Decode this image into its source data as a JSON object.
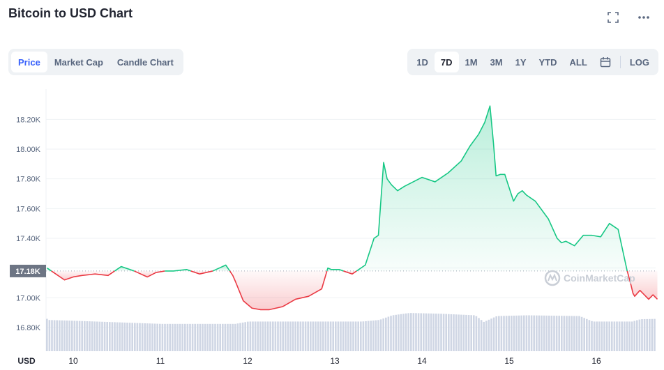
{
  "header": {
    "title": "Bitcoin to USD Chart"
  },
  "icons": {
    "fullscreen": "fullscreen-icon",
    "more": "more-icon",
    "calendar": "calendar-icon",
    "watermark": "coinmarketcap-logo-icon"
  },
  "tabs": [
    {
      "label": "Price",
      "active": true
    },
    {
      "label": "Market Cap",
      "active": false
    },
    {
      "label": "Candle Chart",
      "active": false
    }
  ],
  "ranges": [
    {
      "label": "1D",
      "active": false
    },
    {
      "label": "7D",
      "active": true
    },
    {
      "label": "1M",
      "active": false
    },
    {
      "label": "3M",
      "active": false
    },
    {
      "label": "1Y",
      "active": false
    },
    {
      "label": "YTD",
      "active": false
    },
    {
      "label": "ALL",
      "active": false
    }
  ],
  "log_label": "LOG",
  "watermark": "CoinMarketCap",
  "colors": {
    "up": "#16c784",
    "down": "#ea3943",
    "volume": "#cfd6e4",
    "current_label_bg": "#6d7584",
    "grid": "#eff2f5"
  },
  "chart_data": {
    "type": "area",
    "title": "Bitcoin to USD Chart",
    "ylabel": "USD",
    "ylim": [
      16800,
      18300
    ],
    "yticks": [
      "18.20K",
      "18.00K",
      "17.80K",
      "17.60K",
      "17.40K",
      "17.20K",
      "17.00K",
      "16.80K"
    ],
    "ytick_values": [
      18200,
      18000,
      17800,
      17600,
      17400,
      17200,
      17000,
      16800
    ],
    "xticks": [
      "10",
      "11",
      "12",
      "13",
      "14",
      "15",
      "16"
    ],
    "xlim": [
      9.7,
      16.7
    ],
    "baseline": 17180,
    "current_price_label": "17.18K",
    "grid": true,
    "series": [
      {
        "x": [
          9.7,
          9.8,
          9.9,
          10.0,
          10.1,
          10.25,
          10.4,
          10.55,
          10.7,
          10.85,
          10.95,
          11.05,
          11.15,
          11.3,
          11.45,
          11.6,
          11.75,
          11.83,
          11.86,
          11.95,
          12.05,
          12.15,
          12.25,
          12.4,
          12.55,
          12.7,
          12.85,
          12.92,
          12.96,
          13.05,
          13.2,
          13.35,
          13.45,
          13.5,
          13.56,
          13.6,
          13.65,
          13.72,
          13.8,
          13.9,
          14.0,
          14.15,
          14.3,
          14.45,
          14.55,
          14.65,
          14.72,
          14.78,
          14.82,
          14.85,
          14.9,
          14.95,
          15.05,
          15.1,
          15.15,
          15.2,
          15.3,
          15.45,
          15.55,
          15.6,
          15.65,
          15.75,
          15.85,
          15.95,
          16.05,
          16.15,
          16.25,
          16.35,
          16.4,
          16.42,
          16.44,
          16.5,
          16.6,
          16.65,
          16.7
        ],
        "y": [
          17200,
          17160,
          17120,
          17140,
          17150,
          17160,
          17150,
          17210,
          17180,
          17140,
          17170,
          17180,
          17180,
          17190,
          17160,
          17180,
          17220,
          17150,
          17110,
          16980,
          16930,
          16920,
          16920,
          16940,
          16990,
          17010,
          17060,
          17200,
          17190,
          17190,
          17160,
          17220,
          17400,
          17420,
          17910,
          17800,
          17760,
          17720,
          17750,
          17780,
          17810,
          17780,
          17840,
          17920,
          18020,
          18100,
          18180,
          18290,
          18040,
          17820,
          17830,
          17830,
          17650,
          17700,
          17720,
          17690,
          17650,
          17530,
          17400,
          17370,
          17380,
          17350,
          17420,
          17420,
          17410,
          17500,
          17460,
          17190,
          17080,
          17030,
          17010,
          17050,
          16990,
          17020,
          16990
        ]
      }
    ],
    "volume": {
      "x": [
        9.7,
        10.0,
        10.5,
        11.0,
        11.5,
        11.85,
        12.0,
        12.5,
        13.0,
        13.3,
        13.5,
        13.65,
        13.85,
        14.2,
        14.6,
        14.7,
        14.85,
        15.2,
        15.8,
        15.95,
        16.4,
        16.5,
        16.7
      ],
      "y": [
        0.8,
        0.78,
        0.74,
        0.7,
        0.7,
        0.7,
        0.76,
        0.76,
        0.76,
        0.76,
        0.8,
        0.92,
        0.98,
        0.96,
        0.92,
        0.75,
        0.9,
        0.92,
        0.9,
        0.76,
        0.76,
        0.82,
        0.83
      ]
    }
  }
}
